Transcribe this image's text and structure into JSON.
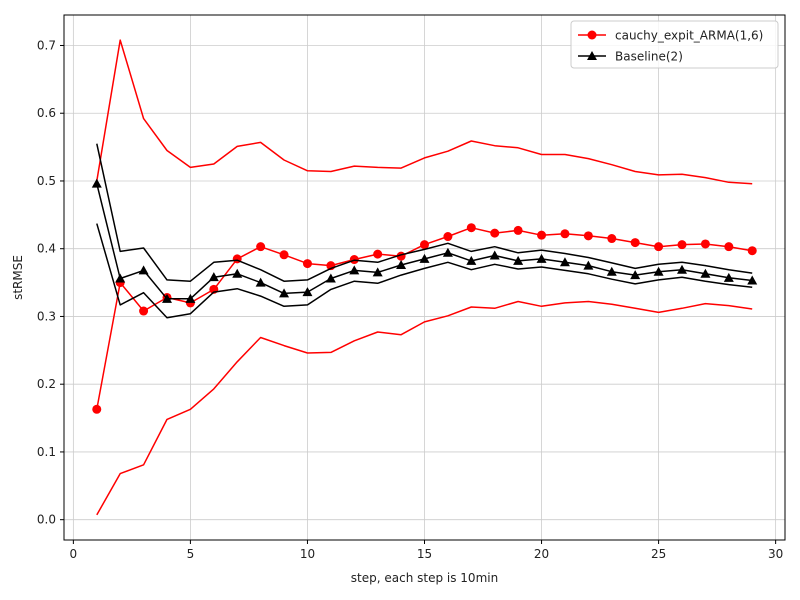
{
  "chart_data": {
    "type": "line",
    "xlabel": "step, each step is 10min",
    "ylabel": "stRMSE",
    "xlim": [
      -0.4,
      30.4
    ],
    "ylim": [
      -0.03,
      0.745
    ],
    "xticks": [
      0,
      5,
      10,
      15,
      20,
      25,
      30
    ],
    "yticks": [
      0.0,
      0.1,
      0.2,
      0.3,
      0.4,
      0.5,
      0.6,
      0.7
    ],
    "grid": true,
    "legend_position": "top-right",
    "x": [
      1,
      2,
      3,
      4,
      5,
      6,
      7,
      8,
      9,
      10,
      11,
      12,
      13,
      14,
      15,
      16,
      17,
      18,
      19,
      20,
      21,
      22,
      23,
      24,
      25,
      26,
      27,
      28,
      29
    ],
    "series": [
      {
        "name": "cauchy_expit_ARMA(1,6)",
        "color": "#ff0000",
        "marker": "circle",
        "in_legend": true,
        "values": [
          0.163,
          0.35,
          0.308,
          0.328,
          0.32,
          0.34,
          0.385,
          0.403,
          0.391,
          0.378,
          0.375,
          0.384,
          0.392,
          0.389,
          0.406,
          0.418,
          0.431,
          0.423,
          0.427,
          0.42,
          0.422,
          0.419,
          0.415,
          0.409,
          0.403,
          0.406,
          0.407,
          0.403,
          0.397
        ]
      },
      {
        "color": "#ff0000",
        "marker": "none",
        "in_legend": false,
        "values": [
          0.5,
          0.708,
          0.592,
          0.545,
          0.52,
          0.525,
          0.551,
          0.557,
          0.531,
          0.515,
          0.514,
          0.522,
          0.52,
          0.519,
          0.534,
          0.544,
          0.559,
          0.552,
          0.549,
          0.539,
          0.539,
          0.533,
          0.524,
          0.514,
          0.509,
          0.51,
          0.505,
          0.498,
          0.496
        ]
      },
      {
        "color": "#ff0000",
        "marker": "none",
        "in_legend": false,
        "values": [
          0.007,
          0.068,
          0.081,
          0.148,
          0.163,
          0.193,
          0.233,
          0.269,
          0.257,
          0.246,
          0.247,
          0.264,
          0.277,
          0.273,
          0.292,
          0.301,
          0.314,
          0.312,
          0.322,
          0.315,
          0.32,
          0.322,
          0.318,
          0.312,
          0.306,
          0.312,
          0.319,
          0.316,
          0.311
        ]
      },
      {
        "name": "Baseline(2)",
        "color": "#000000",
        "marker": "triangle",
        "in_legend": true,
        "values": [
          0.496,
          0.356,
          0.368,
          0.326,
          0.326,
          0.358,
          0.363,
          0.35,
          0.334,
          0.336,
          0.356,
          0.368,
          0.365,
          0.376,
          0.385,
          0.394,
          0.382,
          0.39,
          0.382,
          0.385,
          0.38,
          0.375,
          0.366,
          0.361,
          0.366,
          0.369,
          0.363,
          0.357,
          0.353
        ]
      },
      {
        "color": "#000000",
        "marker": "none",
        "in_legend": false,
        "values": [
          0.555,
          0.396,
          0.401,
          0.354,
          0.352,
          0.38,
          0.383,
          0.369,
          0.352,
          0.354,
          0.371,
          0.383,
          0.38,
          0.391,
          0.399,
          0.408,
          0.396,
          0.403,
          0.394,
          0.398,
          0.393,
          0.387,
          0.379,
          0.371,
          0.377,
          0.38,
          0.375,
          0.369,
          0.364
        ]
      },
      {
        "color": "#000000",
        "marker": "none",
        "in_legend": false,
        "values": [
          0.437,
          0.317,
          0.335,
          0.298,
          0.304,
          0.336,
          0.341,
          0.33,
          0.315,
          0.317,
          0.34,
          0.352,
          0.349,
          0.361,
          0.371,
          0.38,
          0.369,
          0.377,
          0.37,
          0.373,
          0.368,
          0.363,
          0.355,
          0.348,
          0.354,
          0.358,
          0.352,
          0.347,
          0.343
        ]
      }
    ]
  }
}
